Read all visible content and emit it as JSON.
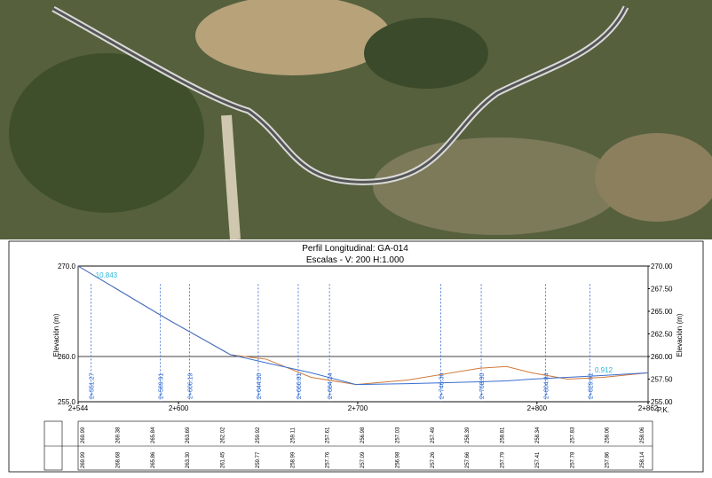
{
  "chart_data": {
    "type": "line",
    "title": "Perfil Longitudinal: GA-014",
    "subtitle": "Escalas - V: 200 H:1.000",
    "y_label": "Elevación (m)",
    "x_label": "P.K.",
    "x": [
      544,
      594,
      629,
      649,
      674,
      699,
      728,
      768,
      783,
      797,
      817,
      837,
      862
    ],
    "series": [
      {
        "color": "#d07a3a",
        "values": [
          270,
          264.1,
          260.2,
          259.7,
          257.7,
          256.9,
          257.4,
          258.7,
          258.9,
          258.2,
          257.5,
          257.7,
          258.2
        ]
      },
      {
        "color": "#3a6fd0",
        "values": [
          270,
          264.1,
          260.2,
          259.3,
          258.2,
          256.9,
          257.0,
          257.2,
          257.3,
          257.5,
          257.7,
          257.9,
          258.2
        ]
      }
    ],
    "xlim": [
      544,
      862
    ],
    "xticks": [
      {
        "value": 544,
        "label": "2+544"
      },
      {
        "value": 600,
        "label": "2+600"
      },
      {
        "value": 700,
        "label": "2+700"
      },
      {
        "value": 800,
        "label": "2+800"
      },
      {
        "value": 862,
        "label": "2+862"
      }
    ],
    "ylim": [
      255,
      270
    ],
    "yticks": [
      {
        "value": 270,
        "label": "270.0"
      },
      {
        "value": 260,
        "label": "260.0"
      },
      {
        "value": 255,
        "label": "255.0"
      }
    ],
    "y2ticks": [
      {
        "value": 270,
        "label": "270.00"
      },
      {
        "value": 267.5,
        "label": "267.50"
      },
      {
        "value": 265,
        "label": "265.00"
      },
      {
        "value": 262.5,
        "label": "262.50"
      },
      {
        "value": 260,
        "label": "260.00"
      },
      {
        "value": 257.5,
        "label": "257.50"
      },
      {
        "value": 255,
        "label": "255.00"
      }
    ],
    "stations": [
      {
        "value": 551.27,
        "label": "2+551.27"
      },
      {
        "value": 589.91,
        "label": "2+589.91"
      },
      {
        "value": 606.19,
        "label": "2+606.19"
      },
      {
        "value": 644.5,
        "label": "2+644.50"
      },
      {
        "value": 666.81,
        "label": "2+666.81"
      },
      {
        "value": 684.24,
        "label": "2+684.24"
      },
      {
        "value": 746.36,
        "label": "2+746.36"
      },
      {
        "value": 768.9,
        "label": "2+768.90"
      },
      {
        "value": 804.84,
        "label": "2+804.84"
      },
      {
        "value": 829.61,
        "label": "2+829.61"
      }
    ],
    "grade_labels": [
      "-10.843",
      "0.912"
    ],
    "terrain_row": [
      "269.99",
      "269.38",
      "265.84",
      "263.69",
      "262.02",
      "259.92",
      "259.11",
      "257.61",
      "256.98",
      "257.03",
      "257.49",
      "258.39",
      "258.81",
      "258.34",
      "257.83",
      "258.06",
      "258.06"
    ],
    "grade_row": [
      "269.99",
      "268.68",
      "265.86",
      "263.30",
      "261.45",
      "259.77",
      "258.99",
      "257.76",
      "257.09",
      "256.98",
      "257.26",
      "257.66",
      "257.79",
      "257.41",
      "257.78",
      "257.86",
      "258.14"
    ]
  }
}
